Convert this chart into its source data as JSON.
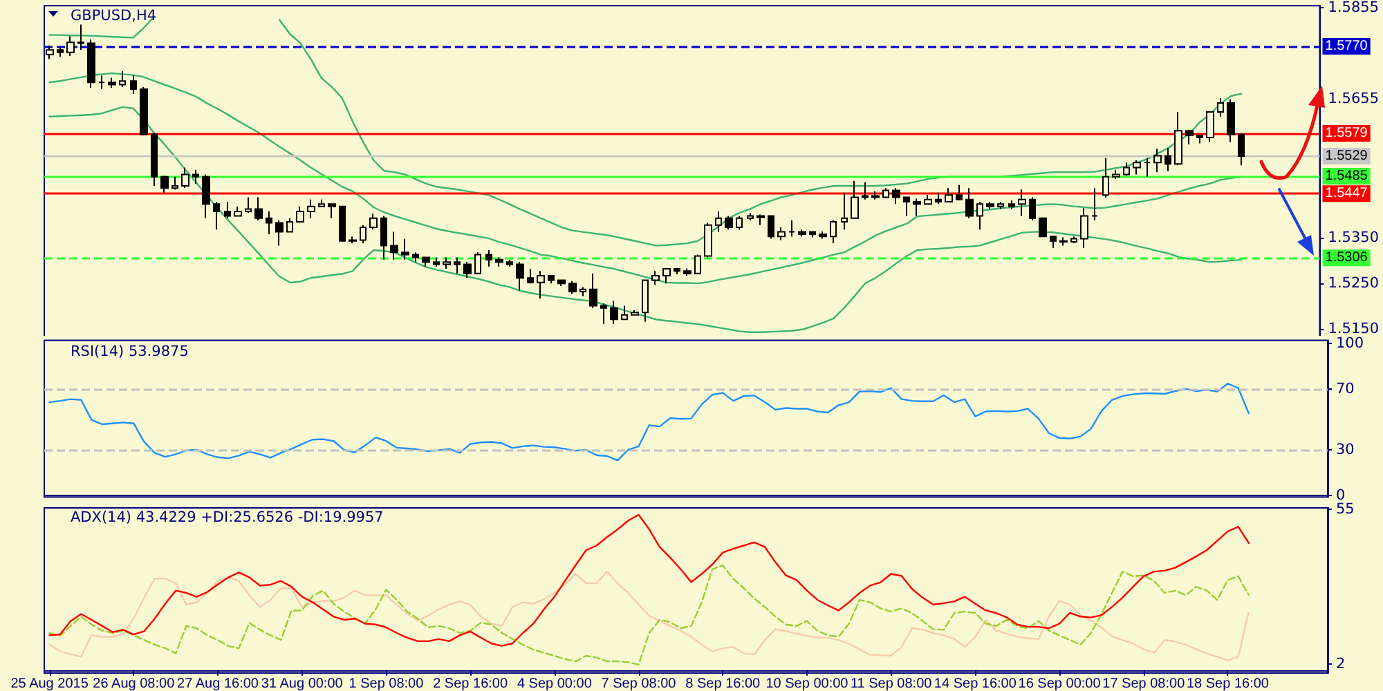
{
  "chart_data": [
    {
      "type": "candlestick",
      "title": "GBPUSD,H4",
      "color": "#000000",
      "categories": [
        null,
        null,
        null,
        null,
        null,
        null,
        null,
        null,
        null,
        null,
        null,
        null,
        null,
        null,
        null,
        null,
        null,
        null,
        null,
        null,
        null,
        null,
        null,
        null,
        null,
        null,
        null,
        null,
        null,
        null,
        null,
        null,
        null,
        null,
        null,
        null,
        null,
        null,
        null,
        null,
        null,
        null,
        null,
        null,
        null,
        null,
        null,
        null,
        null,
        null,
        null,
        null,
        null,
        null,
        null,
        null,
        null,
        null,
        null,
        null,
        null,
        null,
        null,
        null,
        null,
        null,
        null,
        null,
        null,
        null,
        null,
        null,
        null,
        null,
        null,
        null,
        null,
        null,
        null,
        null,
        null,
        null,
        null,
        null,
        null,
        null,
        null,
        null,
        null,
        null,
        null,
        null,
        null,
        null,
        null,
        null,
        null,
        null,
        null,
        null,
        null,
        null,
        null,
        null,
        null,
        null,
        null,
        null,
        null,
        null,
        null,
        null,
        null,
        null,
        null
      ],
      "ohlc": [
        [
          1.5752,
          1.5772,
          1.5742,
          1.5762
        ],
        [
          1.5762,
          1.5767,
          1.5747,
          1.5757
        ],
        [
          1.5757,
          1.5792,
          1.5749,
          1.5779
        ],
        [
          1.5779,
          1.5818,
          1.5762,
          1.5777
        ],
        [
          1.5777,
          1.5785,
          1.5679,
          1.5691
        ],
        [
          1.5691,
          1.5706,
          1.5676,
          1.5691
        ],
        [
          1.5691,
          1.5701,
          1.5679,
          1.5686
        ],
        [
          1.5686,
          1.5716,
          1.5681,
          1.5694
        ],
        [
          1.5694,
          1.5706,
          1.5666,
          1.5676
        ],
        [
          1.5676,
          1.5681,
          1.5575,
          1.5577
        ],
        [
          1.5577,
          1.558,
          1.5464,
          1.5484
        ],
        [
          1.5484,
          1.5486,
          1.5449,
          1.5459
        ],
        [
          1.5459,
          1.5484,
          1.5456,
          1.5464
        ],
        [
          1.5464,
          1.5504,
          1.5459,
          1.5489
        ],
        [
          1.5489,
          1.5499,
          1.5469,
          1.5484
        ],
        [
          1.5484,
          1.5489,
          1.5393,
          1.5424
        ],
        [
          1.5424,
          1.5429,
          1.5368,
          1.5408
        ],
        [
          1.5408,
          1.5429,
          1.5393,
          1.5398
        ],
        [
          1.5398,
          1.5419,
          1.5398,
          1.5408
        ],
        [
          1.5408,
          1.5439,
          1.5405,
          1.5413
        ],
        [
          1.5413,
          1.5439,
          1.5388,
          1.5393
        ],
        [
          1.5393,
          1.5408,
          1.5358,
          1.5383
        ],
        [
          1.5383,
          1.5388,
          1.5333,
          1.5363
        ],
        [
          1.5363,
          1.5393,
          1.5363,
          1.5385
        ],
        [
          1.5385,
          1.5419,
          1.5383,
          1.5408
        ],
        [
          1.5408,
          1.5434,
          1.5393,
          1.5419
        ],
        [
          1.5419,
          1.5434,
          1.5419,
          1.5424
        ],
        [
          1.5424,
          1.5424,
          1.5393,
          1.5419
        ],
        [
          1.5419,
          1.5419,
          1.5343,
          1.5343
        ],
        [
          1.5343,
          1.5353,
          1.5338,
          1.5345
        ],
        [
          1.5345,
          1.5378,
          1.5338,
          1.5373
        ],
        [
          1.5373,
          1.5403,
          1.5368,
          1.5393
        ],
        [
          1.5393,
          1.5398,
          1.5302,
          1.5333
        ],
        [
          1.5333,
          1.5363,
          1.5302,
          1.5318
        ],
        [
          1.5318,
          1.5348,
          1.5302,
          1.5313
        ],
        [
          1.5313,
          1.5318,
          1.5297,
          1.5307
        ],
        [
          1.5307,
          1.5307,
          1.5287,
          1.5297
        ],
        [
          1.5297,
          1.5307,
          1.5287,
          1.5292
        ],
        [
          1.5292,
          1.5307,
          1.5282,
          1.5297
        ],
        [
          1.5297,
          1.5307,
          1.5272,
          1.5292
        ],
        [
          1.5292,
          1.5297,
          1.5262,
          1.5272
        ],
        [
          1.5272,
          1.5318,
          1.5272,
          1.5313
        ],
        [
          1.5313,
          1.5323,
          1.5287,
          1.5302
        ],
        [
          1.5302,
          1.5307,
          1.5287,
          1.5297
        ],
        [
          1.5297,
          1.5302,
          1.5287,
          1.5292
        ],
        [
          1.5292,
          1.5297,
          1.5234,
          1.5262
        ],
        [
          1.5262,
          1.5282,
          1.525,
          1.5252
        ],
        [
          1.5252,
          1.5277,
          1.5217,
          1.5267
        ],
        [
          1.5267,
          1.5267,
          1.525,
          1.5257
        ],
        [
          1.5257,
          1.5257,
          1.5244,
          1.525
        ],
        [
          1.525,
          1.5255,
          1.5227,
          1.5232
        ],
        [
          1.5232,
          1.5242,
          1.5222,
          1.5237
        ],
        [
          1.5237,
          1.5272,
          1.5196,
          1.5201
        ],
        [
          1.5201,
          1.5206,
          1.5161,
          1.5196
        ],
        [
          1.5196,
          1.5212,
          1.5161,
          1.5171
        ],
        [
          1.5171,
          1.5201,
          1.5171,
          1.5181
        ],
        [
          1.5181,
          1.5191,
          1.5181,
          1.5186
        ],
        [
          1.5186,
          1.5257,
          1.5166,
          1.5257
        ],
        [
          1.5257,
          1.5277,
          1.5247,
          1.5267
        ],
        [
          1.5267,
          1.5284,
          1.525,
          1.5282
        ],
        [
          1.5282,
          1.5284,
          1.527,
          1.5277
        ],
        [
          1.5277,
          1.5283,
          1.5267,
          1.5272
        ],
        [
          1.5272,
          1.5313,
          1.5272,
          1.531
        ],
        [
          1.531,
          1.5383,
          1.5307,
          1.5378
        ],
        [
          1.5378,
          1.5408,
          1.5363,
          1.5393
        ],
        [
          1.5393,
          1.5398,
          1.5368,
          1.5373
        ],
        [
          1.5373,
          1.5398,
          1.5368,
          1.5393
        ],
        [
          1.5393,
          1.5404,
          1.5388,
          1.5398
        ],
        [
          1.5395,
          1.5401,
          1.5378,
          1.5398
        ],
        [
          1.5398,
          1.5398,
          1.5348,
          1.5353
        ],
        [
          1.5353,
          1.5373,
          1.5345,
          1.5363
        ],
        [
          1.5363,
          1.5388,
          1.5353,
          1.5363
        ],
        [
          1.5363,
          1.5368,
          1.5353,
          1.5358
        ],
        [
          1.5363,
          1.5363,
          1.5351,
          1.5358
        ],
        [
          1.5358,
          1.5364,
          1.5348,
          1.5353
        ],
        [
          1.5353,
          1.5388,
          1.5338,
          1.5385
        ],
        [
          1.5385,
          1.5449,
          1.5368,
          1.5393
        ],
        [
          1.5393,
          1.5475,
          1.5393,
          1.5439
        ],
        [
          1.5439,
          1.5472,
          1.5434,
          1.5442
        ],
        [
          1.5442,
          1.5452,
          1.5434,
          1.5439
        ],
        [
          1.5439,
          1.5459,
          1.5439,
          1.5454
        ],
        [
          1.5454,
          1.5459,
          1.5424,
          1.5439
        ],
        [
          1.5439,
          1.5439,
          1.5398,
          1.5429
        ],
        [
          1.5429,
          1.5436,
          1.5398,
          1.5424
        ],
        [
          1.5424,
          1.5444,
          1.5424,
          1.5434
        ],
        [
          1.5434,
          1.5449,
          1.5424,
          1.5429
        ],
        [
          1.5429,
          1.5459,
          1.5429,
          1.5444
        ],
        [
          1.5444,
          1.5466,
          1.5432,
          1.5434
        ],
        [
          1.5434,
          1.5459,
          1.5393,
          1.5398
        ],
        [
          1.5398,
          1.5429,
          1.5368,
          1.5424
        ],
        [
          1.5424,
          1.5429,
          1.5413,
          1.5419
        ],
        [
          1.5419,
          1.5429,
          1.5413,
          1.5424
        ],
        [
          1.5424,
          1.5432,
          1.5413,
          1.5419
        ],
        [
          1.5424,
          1.5456,
          1.5398,
          1.5434
        ],
        [
          1.5434,
          1.5439,
          1.5388,
          1.5393
        ],
        [
          1.5393,
          1.5395,
          1.5353,
          1.5353
        ],
        [
          1.5353,
          1.5355,
          1.5328,
          1.5343
        ],
        [
          1.5343,
          1.5351,
          1.5333,
          1.5341
        ],
        [
          1.5341,
          1.5353,
          1.5338,
          1.5348
        ],
        [
          1.5348,
          1.5415,
          1.5328,
          1.5398
        ],
        [
          1.5398,
          1.5459,
          1.5388,
          1.5398
        ],
        [
          1.5444,
          1.5525,
          1.5438,
          1.5484
        ],
        [
          1.5484,
          1.5499,
          1.5479,
          1.5489
        ],
        [
          1.5489,
          1.5515,
          1.5486,
          1.5504
        ],
        [
          1.5504,
          1.552,
          1.5489,
          1.5515
        ],
        [
          1.5515,
          1.5525,
          1.5484,
          1.5515
        ],
        [
          1.5515,
          1.5545,
          1.5494,
          1.553
        ],
        [
          1.553,
          1.5547,
          1.5496,
          1.5512
        ],
        [
          1.5512,
          1.5626,
          1.5509,
          1.5585
        ],
        [
          1.5585,
          1.5587,
          1.5555,
          1.5575
        ],
        [
          1.5575,
          1.5575,
          1.5557,
          1.557
        ],
        [
          1.557,
          1.5626,
          1.556,
          1.5626
        ],
        [
          1.5626,
          1.5656,
          1.5616,
          1.5646
        ],
        [
          1.5646,
          1.5654,
          1.556,
          1.5577
        ],
        [
          1.5577,
          1.5577,
          1.5509,
          1.5529
        ]
      ],
      "series": [
        {
          "type": "line",
          "color": "#3cb371",
          "values": [
            1.5795,
            1.5795,
            1.5794,
            1.5794,
            1.5793,
            1.5792,
            1.5791,
            1.579,
            1.5789,
            1.581,
            1.5835,
            null,
            null,
            null,
            null,
            null,
            null,
            null,
            null,
            null,
            null,
            null,
            1.5828,
            1.5797,
            1.5777,
            1.5742,
            1.5701,
            1.5681,
            1.5656,
            1.5605,
            1.556,
            1.552,
            1.5497,
            1.5494,
            1.5489,
            1.5479,
            1.5469,
            1.5462,
            1.5459,
            1.5456,
            1.5452,
            1.5448,
            1.5444,
            1.5434,
            1.5424,
            1.5413,
            1.5403,
            1.5393,
            1.5383,
            1.5373,
            1.5366,
            1.5363,
            1.536,
            1.5357,
            1.5353,
            1.5348,
            1.5343,
            1.5338,
            1.5333,
            1.5334,
            1.5336,
            1.5338,
            1.5343,
            1.5358,
            1.5375,
            1.5393,
            1.5405,
            1.5413,
            1.5424,
            1.5431,
            1.5439,
            1.5444,
            1.545,
            1.5456,
            1.546,
            1.5464,
            1.5464,
            1.5464,
            1.5464,
            1.5464,
            1.5465,
            1.5467,
            1.5469,
            1.5474,
            1.5479,
            1.5482,
            1.5484,
            1.5484,
            1.5484,
            1.5484,
            1.5484,
            1.5484,
            1.5486,
            1.5488,
            1.549,
            1.5492,
            1.5494,
            1.5494,
            1.5494,
            1.5494,
            1.5495,
            1.5499,
            1.5503,
            1.5507,
            1.5515,
            1.5523,
            1.5535,
            1.5547,
            1.5563,
            1.5577,
            1.5603,
            1.5621,
            1.5644,
            1.5661,
            1.5666
          ]
        },
        {
          "type": "line",
          "color": "#3cb371",
          "values": [
            1.5691,
            1.5694,
            1.5698,
            1.5702,
            1.5706,
            1.5709,
            1.5711,
            1.5709,
            1.5707,
            1.5703,
            1.5694,
            1.5686,
            1.5678,
            1.5669,
            1.566,
            1.5646,
            1.5634,
            1.5621,
            1.5607,
            1.5594,
            1.5581,
            1.5565,
            1.555,
            1.5535,
            1.552,
            1.5504,
            1.549,
            1.5476,
            1.5462,
            1.5452,
            1.5436,
            1.5417,
            1.5406,
            1.5398,
            1.5391,
            1.5384,
            1.5377,
            1.537,
            1.5365,
            1.5361,
            1.5357,
            1.5353,
            1.5349,
            1.5341,
            1.5335,
            1.5328,
            1.5321,
            1.5313,
            1.531,
            1.5305,
            1.53,
            1.5295,
            1.5291,
            1.5286,
            1.5282,
            1.5276,
            1.527,
            1.5264,
            1.5258,
            1.5252,
            1.5251,
            1.5251,
            1.525,
            1.5253,
            1.5258,
            1.5262,
            1.5266,
            1.527,
            1.5275,
            1.528,
            1.5285,
            1.529,
            1.5295,
            1.5301,
            1.5307,
            1.5313,
            1.5318,
            1.533,
            1.5342,
            1.5355,
            1.5365,
            1.5373,
            1.5381,
            1.5397,
            1.5399,
            1.5401,
            1.5403,
            1.5405,
            1.5408,
            1.541,
            1.5412,
            1.5415,
            1.5417,
            1.5419,
            1.5421,
            1.5423,
            1.5424,
            1.5422,
            1.5419,
            1.5417,
            1.5415,
            1.5416,
            1.542,
            1.5424,
            1.5428,
            1.5432,
            1.5436,
            1.5444,
            1.5451,
            1.5458,
            1.5464,
            1.5469,
            1.5477,
            1.5481,
            1.5484
          ]
        },
        {
          "type": "line",
          "color": "#3cb371",
          "values": [
            1.5616,
            1.5617,
            1.5618,
            1.5619,
            1.562,
            1.5623,
            1.563,
            1.5637,
            1.5634,
            1.561,
            1.558,
            1.5555,
            1.5528,
            1.5499,
            1.5472,
            1.5444,
            1.5417,
            1.5391,
            1.5366,
            1.5341,
            1.5316,
            1.529,
            1.5265,
            1.5252,
            1.5254,
            1.5262,
            1.5265,
            1.5268,
            1.5271,
            1.5277,
            1.5302,
            1.5323,
            1.5321,
            1.5318,
            1.5307,
            1.5296,
            1.5286,
            1.528,
            1.5275,
            1.527,
            1.5265,
            1.526,
            1.5254,
            1.5247,
            1.5242,
            1.5234,
            1.5229,
            1.5225,
            1.5222,
            1.5219,
            1.5216,
            1.5213,
            1.5211,
            1.5204,
            1.5198,
            1.5191,
            1.5184,
            1.5178,
            1.5171,
            1.5168,
            1.5166,
            1.5163,
            1.5161,
            1.5157,
            1.5153,
            1.5149,
            1.5145,
            1.5143,
            1.5143,
            1.5144,
            1.5145,
            1.5146,
            1.5149,
            1.5156,
            1.5164,
            1.5173,
            1.5196,
            1.5222,
            1.525,
            1.5262,
            1.5277,
            1.5294,
            1.531,
            1.5323,
            1.5325,
            1.5326,
            1.5328,
            1.533,
            1.5331,
            1.5333,
            1.534,
            1.5347,
            1.5354,
            1.5361,
            1.5363,
            1.5363,
            1.5362,
            1.5359,
            1.5356,
            1.5353,
            1.535,
            1.5347,
            1.5343,
            1.5338,
            1.5332,
            1.5327,
            1.5321,
            1.5316,
            1.5308,
            1.5304,
            1.5301,
            1.5297,
            1.5298,
            1.53,
            1.5302
          ]
        }
      ],
      "ylim": [
        1.5132,
        1.5859
      ],
      "yticks": [
        {
          "value": 1.515,
          "label": "1.5150"
        },
        {
          "value": 1.525,
          "label": "1.5250"
        },
        {
          "value": 1.535,
          "label": "1.5350"
        },
        1.5655,
        1.5855
      ],
      "ref_lines": [
        {
          "axis": "y",
          "value": 1.577,
          "label": "1.5770",
          "color": "#0000cd",
          "line_style": "dashed"
        },
        {
          "axis": "y",
          "value": 1.5579,
          "label": "1.5579",
          "color": "#ff0000",
          "line_style": "solid"
        },
        {
          "axis": "y",
          "value": 1.5529,
          "label": "1.5529",
          "color": "#c8c8c8",
          "line_style": "solid"
        },
        {
          "axis": "y",
          "value": 1.5485,
          "label": "1.5485",
          "color": "#33ff33",
          "line_style": "solid"
        },
        {
          "axis": "y",
          "value": 1.5447,
          "label": "1.5447",
          "color": "#ff0000",
          "line_style": "solid"
        },
        {
          "axis": "y",
          "value": 1.5306,
          "label": "1.5306",
          "color": "#33ff33",
          "line_style": "dashed"
        }
      ],
      "tick_labels": "y"
    },
    {
      "type": "line",
      "title": "RSI(14) 53.9875",
      "categories": [
        null,
        null,
        null,
        null,
        null,
        null,
        null,
        null,
        null,
        null,
        null,
        null,
        null,
        null,
        null,
        null,
        null,
        null,
        null,
        null,
        null,
        null,
        null,
        null,
        null,
        null,
        null,
        null,
        null,
        null,
        null,
        null,
        null,
        null,
        null,
        null,
        null,
        null,
        null,
        null,
        null,
        null,
        null,
        null,
        null,
        null,
        null,
        null,
        null,
        null,
        null,
        null,
        null,
        null,
        null,
        null,
        null,
        null,
        null,
        null,
        null,
        null,
        null,
        null,
        null,
        null,
        null,
        null,
        null,
        null,
        null,
        null,
        null,
        null,
        null,
        null,
        null,
        null,
        null,
        null,
        null,
        null,
        null,
        null,
        null,
        null,
        null,
        null,
        null,
        null,
        null,
        null,
        null,
        null,
        null,
        null,
        null,
        null,
        null,
        null,
        null,
        null,
        null,
        null,
        null,
        null,
        null,
        null,
        null,
        null,
        null,
        null,
        null,
        null,
        null
      ],
      "series": [
        {
          "color": "#1e90ff",
          "values": [
            61.3,
            62.2,
            63.3,
            62.8,
            49.7,
            46.8,
            47.4,
            48.0,
            47.4,
            35.2,
            28.0,
            25.4,
            27.1,
            29.7,
            30.0,
            27.1,
            25.1,
            24.5,
            26.2,
            28.8,
            27.1,
            24.8,
            28.0,
            30.6,
            33.8,
            36.7,
            37.0,
            35.8,
            30.0,
            28.3,
            32.9,
            38.1,
            35.8,
            31.4,
            30.9,
            30.3,
            29.1,
            29.7,
            30.6,
            28.0,
            33.8,
            34.9,
            35.2,
            34.3,
            31.2,
            32.3,
            32.9,
            32.0,
            31.7,
            30.6,
            29.4,
            30.0,
            26.5,
            25.9,
            23.0,
            30.0,
            32.3,
            46.2,
            45.4,
            50.9,
            50.3,
            50.6,
            59.9,
            66.2,
            67.4,
            62.2,
            65.4,
            65.7,
            61.3,
            56.4,
            57.5,
            57.0,
            57.0,
            55.2,
            54.6,
            59.3,
            61.3,
            68.3,
            68.6,
            68.0,
            70.6,
            63.3,
            62.2,
            61.9,
            61.9,
            65.9,
            61.3,
            63.3,
            52.0,
            55.2,
            55.5,
            55.2,
            55.5,
            57.0,
            50.6,
            41.0,
            37.8,
            37.5,
            38.7,
            43.9,
            55.5,
            62.8,
            65.4,
            66.5,
            67.1,
            67.1,
            66.8,
            68.6,
            70.0,
            68.6,
            69.4,
            68.3,
            73.5,
            70.6,
            53.9875
          ]
        }
      ],
      "ylim": [
        -1,
        102
      ],
      "yticks": [
        0,
        30,
        70,
        100
      ],
      "ref_lines": [
        {
          "axis": "y",
          "value": 70,
          "color": "#c0c0c0",
          "line_style": "dashed"
        },
        {
          "axis": "y",
          "value": 30,
          "color": "#c0c0c0",
          "line_style": "dashed"
        }
      ],
      "tick_labels": "y"
    },
    {
      "type": "line",
      "title": "ADX(14) 43.4229 +DI:25.6526 -DI:19.9957",
      "categories": [
        "25 Aug 2015",
        null,
        null,
        null,
        null,
        null,
        null,
        null,
        "26 Aug 08:00",
        null,
        null,
        null,
        null,
        null,
        null,
        null,
        "27 Aug 16:00",
        null,
        null,
        null,
        null,
        null,
        null,
        null,
        "31 Aug 00:00",
        null,
        null,
        null,
        null,
        null,
        null,
        null,
        "1 Sep 08:00",
        null,
        null,
        null,
        null,
        null,
        null,
        null,
        "2 Sep 16:00",
        null,
        null,
        null,
        null,
        null,
        null,
        null,
        "4 Sep 00:00",
        null,
        null,
        null,
        null,
        null,
        null,
        null,
        "7 Sep 08:00",
        null,
        null,
        null,
        null,
        null,
        null,
        null,
        "8 Sep 16:00",
        null,
        null,
        null,
        null,
        null,
        null,
        null,
        "10 Sep 00:00",
        null,
        null,
        null,
        null,
        null,
        null,
        null,
        "11 Sep 08:00",
        null,
        null,
        null,
        null,
        null,
        null,
        null,
        "14 Sep 16:00",
        null,
        null,
        null,
        null,
        null,
        null,
        null,
        "16 Sep 00:00",
        null,
        null,
        null,
        null,
        null,
        null,
        null,
        "17 Sep 08:00",
        null,
        null,
        null,
        null,
        null,
        null,
        null,
        "18 Sep 16:00",
        null,
        null
      ],
      "series": [
        {
          "color": "#f5c8a8",
          "line_style": "dotted",
          "values": [
            8.7,
            6.5,
            5.4,
            4.6,
            11.9,
            11.4,
            11.4,
            12.4,
            17.6,
            24.8,
            31.3,
            31.3,
            29.7,
            22.4,
            23.2,
            26.4,
            30.5,
            31.7,
            30.5,
            25.6,
            21.6,
            24.0,
            28.0,
            28.0,
            21.6,
            23.2,
            23.7,
            23.5,
            24.8,
            27.2,
            25.6,
            25.6,
            25.6,
            22.4,
            19.2,
            17.0,
            18.6,
            20.8,
            22.4,
            23.5,
            22.4,
            18.3,
            15.9,
            15.1,
            21.6,
            23.2,
            22.7,
            24.3,
            26.4,
            29.3,
            32.9,
            29.7,
            29.7,
            33.7,
            29.7,
            26.4,
            22.4,
            18.6,
            16.8,
            15.1,
            13.5,
            11.4,
            8.7,
            6.3,
            7.5,
            7.9,
            5.7,
            5.4,
            10.3,
            14.0,
            13.3,
            12.4,
            11.7,
            11.1,
            11.1,
            10.3,
            9.0,
            7.1,
            5.2,
            5.1,
            4.9,
            7.9,
            14.3,
            13.8,
            12.7,
            11.9,
            10.7,
            7.9,
            11.4,
            17.2,
            13.5,
            12.4,
            11.4,
            10.9,
            10.6,
            18.3,
            23.7,
            22.4,
            18.8,
            16.8,
            14.6,
            11.5,
            10.3,
            9.1,
            7.1,
            5.9,
            10.3,
            9.8,
            8.7,
            7.1,
            5.7,
            4.6,
            3.3,
            4.6,
            19.9957
          ]
        },
        {
          "color": "#9acd32",
          "line_style": "dashed",
          "values": [
            12.7,
            11.7,
            15.1,
            18.3,
            15.6,
            13.5,
            12.7,
            13.5,
            11.9,
            10.3,
            8.7,
            7.5,
            5.7,
            15.1,
            14.3,
            11.9,
            10.3,
            8.2,
            7.5,
            16.2,
            13.8,
            11.9,
            10.3,
            20.4,
            20.4,
            25.3,
            27.2,
            22.7,
            20.0,
            17.9,
            15.9,
            20.8,
            27.5,
            24.0,
            20.0,
            17.6,
            14.6,
            15.1,
            14.3,
            12.7,
            13.5,
            16.2,
            15.6,
            12.7,
            10.7,
            8.7,
            7.0,
            5.9,
            4.9,
            3.8,
            3.0,
            4.9,
            4.3,
            3.0,
            3.0,
            2.7,
            1.9,
            12.7,
            17.2,
            16.4,
            14.3,
            15.1,
            23.2,
            34.5,
            35.8,
            31.2,
            28.0,
            24.5,
            21.6,
            18.3,
            15.6,
            15.1,
            16.8,
            13.5,
            11.9,
            11.4,
            15.9,
            24.0,
            23.2,
            21.1,
            20.0,
            21.1,
            19.5,
            16.8,
            14.0,
            13.8,
            19.5,
            20.0,
            19.5,
            15.9,
            15.1,
            17.2,
            15.1,
            14.3,
            16.8,
            13.5,
            11.9,
            10.3,
            8.7,
            12.7,
            19.2,
            26.4,
            33.7,
            32.1,
            32.4,
            30.5,
            26.4,
            27.2,
            25.6,
            28.5,
            27.2,
            24.0,
            30.8,
            32.1,
            25.6526
          ]
        },
        {
          "color": "#ff0000",
          "line_style": "solid",
          "values": [
            11.9,
            12.2,
            16.7,
            19.2,
            17.2,
            15.1,
            13.0,
            13.8,
            12.2,
            13.3,
            17.6,
            22.7,
            27.2,
            26.4,
            25.1,
            26.7,
            29.3,
            31.7,
            33.4,
            31.7,
            28.9,
            29.2,
            30.5,
            28.5,
            25.1,
            23.2,
            20.8,
            18.3,
            17.2,
            17.6,
            15.9,
            15.6,
            14.6,
            12.7,
            11.1,
            9.9,
            9.9,
            10.6,
            9.9,
            11.9,
            13.2,
            11.1,
            9.1,
            8.3,
            9.1,
            12.7,
            15.9,
            20.8,
            25.1,
            30.5,
            35.8,
            41.0,
            42.6,
            45.5,
            48.1,
            51.1,
            53.1,
            48.2,
            42.1,
            38.5,
            34.5,
            30.1,
            32.9,
            36.1,
            40.2,
            41.5,
            42.6,
            43.7,
            42.1,
            36.9,
            32.4,
            30.8,
            27.2,
            24.0,
            22.1,
            20.4,
            23.2,
            26.4,
            28.9,
            30.0,
            32.9,
            32.2,
            27.7,
            24.8,
            22.4,
            22.9,
            23.5,
            25.1,
            22.7,
            20.4,
            19.5,
            18.0,
            15.6,
            14.8,
            14.8,
            14.3,
            15.9,
            19.6,
            18.3,
            18.0,
            18.8,
            21.6,
            24.8,
            28.5,
            32.1,
            33.7,
            34.0,
            35.0,
            36.9,
            38.9,
            41.0,
            44.2,
            47.4,
            49.0,
            43.4229
          ]
        }
      ],
      "ylim": [
        -1,
        55.5
      ],
      "yticks": [
        2,
        55
      ]
    }
  ]
}
